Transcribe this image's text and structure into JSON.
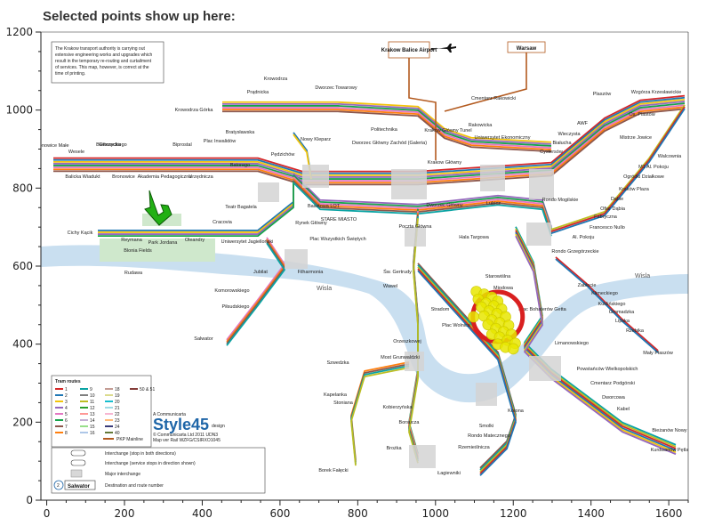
{
  "header": {
    "title": "Selected points show up here:"
  },
  "chart_data": {
    "type": "scatter",
    "xlim": [
      -15,
      1650
    ],
    "ylim": [
      0,
      1200
    ],
    "x_ticks": [
      0,
      200,
      400,
      600,
      800,
      1000,
      1200,
      1400,
      1600
    ],
    "y_ticks": [
      0,
      200,
      400,
      600,
      800,
      1000,
      1200
    ],
    "grid": false,
    "selection_marker_color": "#e8e600",
    "selection_ring_color": "#d92020",
    "points": [
      {
        "x": 1105,
        "y": 535
      },
      {
        "x": 1125,
        "y": 528
      },
      {
        "x": 1145,
        "y": 520
      },
      {
        "x": 1160,
        "y": 510
      },
      {
        "x": 1110,
        "y": 515
      },
      {
        "x": 1130,
        "y": 505
      },
      {
        "x": 1150,
        "y": 498
      },
      {
        "x": 1170,
        "y": 490
      },
      {
        "x": 1118,
        "y": 495
      },
      {
        "x": 1138,
        "y": 485
      },
      {
        "x": 1158,
        "y": 478
      },
      {
        "x": 1180,
        "y": 470
      },
      {
        "x": 1125,
        "y": 472
      },
      {
        "x": 1145,
        "y": 462
      },
      {
        "x": 1165,
        "y": 455
      },
      {
        "x": 1188,
        "y": 448
      },
      {
        "x": 1135,
        "y": 450
      },
      {
        "x": 1155,
        "y": 440
      },
      {
        "x": 1175,
        "y": 432
      },
      {
        "x": 1195,
        "y": 425
      },
      {
        "x": 1145,
        "y": 425
      },
      {
        "x": 1165,
        "y": 418
      },
      {
        "x": 1185,
        "y": 410
      },
      {
        "x": 1205,
        "y": 402
      },
      {
        "x": 1160,
        "y": 400
      },
      {
        "x": 1180,
        "y": 392
      },
      {
        "x": 1200,
        "y": 388
      },
      {
        "x": 1098,
        "y": 470
      }
    ],
    "x_name": "",
    "y_name": ""
  },
  "map": {
    "notice": [
      "The Krakow transport authority is carrying out",
      "extensive engineering works and upgrades which",
      "result in the temporary re-routing and curtailment",
      "of services. This map, however, is correct at the",
      "time of printing."
    ],
    "airport": "Krakow Balice Airport",
    "warsaw": "Warsaw",
    "river": "Wisla",
    "station_labels": [
      {
        "t": "Prądnicka",
        "x": 290,
        "y": 105
      },
      {
        "t": "Bratysławska",
        "x": 270,
        "y": 150
      },
      {
        "t": "Krowodrza Górka",
        "x": 218,
        "y": 125
      },
      {
        "t": "Dworzec Towarowy",
        "x": 378,
        "y": 100
      },
      {
        "t": "Nowy Kleparz",
        "x": 355,
        "y": 158
      },
      {
        "t": "Politechnika",
        "x": 432,
        "y": 147
      },
      {
        "t": "Pędzichów",
        "x": 318,
        "y": 175
      },
      {
        "t": "Dworzec Główny Zachód (Galeria)",
        "x": 438,
        "y": 162
      },
      {
        "t": "Krakow Główny Tunel",
        "x": 504,
        "y": 148
      },
      {
        "t": "Rakowicka",
        "x": 540,
        "y": 142
      },
      {
        "t": "Uniwersytet Ekonomiczny",
        "x": 565,
        "y": 156
      },
      {
        "t": "Cmentarz Rakowicki",
        "x": 555,
        "y": 112
      },
      {
        "t": "Krakow Główny",
        "x": 500,
        "y": 184
      },
      {
        "t": "Dworzec Główny",
        "x": 500,
        "y": 232
      },
      {
        "t": "Lubicz",
        "x": 555,
        "y": 230
      },
      {
        "t": "Bronowice Małe",
        "x": 58,
        "y": 165
      },
      {
        "t": "Wesele",
        "x": 86,
        "y": 172
      },
      {
        "t": "Głowackiego",
        "x": 127,
        "y": 164
      },
      {
        "t": "Bieńczycka",
        "x": 122,
        "y": 164
      },
      {
        "t": "Biprostal",
        "x": 205,
        "y": 164
      },
      {
        "t": "Plac Inwalidów",
        "x": 247,
        "y": 160
      },
      {
        "t": "Balicka Wiadukt",
        "x": 93,
        "y": 200
      },
      {
        "t": "Bronowice",
        "x": 139,
        "y": 200
      },
      {
        "t": "Akademia Pedagogiczna",
        "x": 185,
        "y": 200
      },
      {
        "t": "Urzędnicza",
        "x": 226,
        "y": 200
      },
      {
        "t": "Batorego",
        "x": 270,
        "y": 187
      },
      {
        "t": "Teatr Bagatela",
        "x": 271,
        "y": 234
      },
      {
        "t": "Basztowa LOT",
        "x": 364,
        "y": 233
      },
      {
        "t": "Rynek Główny",
        "x": 350,
        "y": 252
      },
      {
        "t": "STARE MIASTO",
        "x": 381,
        "y": 248
      },
      {
        "t": "Cichy Kącik",
        "x": 90,
        "y": 263
      },
      {
        "t": "Reymana",
        "x": 148,
        "y": 271
      },
      {
        "t": "Park Jordana",
        "x": 183,
        "y": 274
      },
      {
        "t": "Oleandry",
        "x": 219,
        "y": 271
      },
      {
        "t": "Cracovia",
        "x": 250,
        "y": 251
      },
      {
        "t": "Uniwersytet Jagielloński",
        "x": 278,
        "y": 273
      },
      {
        "t": "Plac Wszystkich Świętych",
        "x": 380,
        "y": 270
      },
      {
        "t": "Poczta Główna",
        "x": 467,
        "y": 256
      },
      {
        "t": "Hala Targowa",
        "x": 533,
        "y": 268
      },
      {
        "t": "Filharmonia",
        "x": 349,
        "y": 307
      },
      {
        "t": "Jubilat",
        "x": 293,
        "y": 307
      },
      {
        "t": "Komorowskiego",
        "x": 261,
        "y": 328
      },
      {
        "t": "Piłsudskiego",
        "x": 265,
        "y": 346
      },
      {
        "t": "Św. Gertrudy",
        "x": 447,
        "y": 307
      },
      {
        "t": "Wawel",
        "x": 439,
        "y": 323
      },
      {
        "t": "Starowiślna",
        "x": 560,
        "y": 312
      },
      {
        "t": "Miodowa",
        "x": 566,
        "y": 325
      },
      {
        "t": "Stradom",
        "x": 495,
        "y": 349
      },
      {
        "t": "Plac Wolnica",
        "x": 513,
        "y": 367
      },
      {
        "t": "Plac Bohaterów Getta",
        "x": 610,
        "y": 349
      },
      {
        "t": "Zabłocie",
        "x": 660,
        "y": 322
      },
      {
        "t": "Klimeckiego",
        "x": 680,
        "y": 331
      },
      {
        "t": "Kuklińskiego",
        "x": 688,
        "y": 343
      },
      {
        "t": "Gromadzka",
        "x": 699,
        "y": 352
      },
      {
        "t": "Lipska",
        "x": 700,
        "y": 362
      },
      {
        "t": "Rzebika",
        "x": 714,
        "y": 373
      },
      {
        "t": "Mały Płaszów",
        "x": 740,
        "y": 398
      },
      {
        "t": "Limanowskiego",
        "x": 643,
        "y": 387
      },
      {
        "t": "Orzeszkowej",
        "x": 458,
        "y": 385
      },
      {
        "t": "Most Grunwaldzki",
        "x": 450,
        "y": 403
      },
      {
        "t": "Salwator",
        "x": 229,
        "y": 382
      },
      {
        "t": "Szwedzka",
        "x": 380,
        "y": 409
      },
      {
        "t": "Kapelanka",
        "x": 377,
        "y": 445
      },
      {
        "t": "Stoniana",
        "x": 386,
        "y": 454
      },
      {
        "t": "Kobierzyńska",
        "x": 447,
        "y": 459
      },
      {
        "t": "Borsucza",
        "x": 460,
        "y": 476
      },
      {
        "t": "Brożka",
        "x": 443,
        "y": 505
      },
      {
        "t": "Korona",
        "x": 580,
        "y": 463
      },
      {
        "t": "Smolki",
        "x": 547,
        "y": 480
      },
      {
        "t": "Rondo Matecznego",
        "x": 550,
        "y": 491
      },
      {
        "t": "Rzemieślnicza",
        "x": 533,
        "y": 504
      },
      {
        "t": "Powstańców Wielkopolskich",
        "x": 683,
        "y": 416
      },
      {
        "t": "Cmentarz Podgórski",
        "x": 689,
        "y": 432
      },
      {
        "t": "Dworcowa",
        "x": 690,
        "y": 448
      },
      {
        "t": "Kabel",
        "x": 701,
        "y": 461
      },
      {
        "t": "Bieżanów Nowy",
        "x": 753,
        "y": 485
      },
      {
        "t": "Kurdwanów Pętla",
        "x": 753,
        "y": 507
      },
      {
        "t": "Borek Fałęcki",
        "x": 375,
        "y": 530
      },
      {
        "t": "Łagiewniki",
        "x": 505,
        "y": 533
      },
      {
        "t": "Krowodrza",
        "x": 310,
        "y": 90
      },
      {
        "t": "Mistrze Jowice",
        "x": 715,
        "y": 156
      },
      {
        "t": "Os. Piastów",
        "x": 722,
        "y": 130
      },
      {
        "t": "Wzgórza Krzesławickie",
        "x": 738,
        "y": 105
      },
      {
        "t": "Plaszów",
        "x": 677,
        "y": 107
      },
      {
        "t": "Walcownia",
        "x": 753,
        "y": 177
      },
      {
        "t": "M1 Al. Pokoju",
        "x": 735,
        "y": 189
      },
      {
        "t": "Ogródki Działkowe",
        "x": 724,
        "y": 200
      },
      {
        "t": "Kraków Plaza",
        "x": 713,
        "y": 214
      },
      {
        "t": "Dąbie",
        "x": 694,
        "y": 225
      },
      {
        "t": "Ofiar Dąbia",
        "x": 689,
        "y": 236
      },
      {
        "t": "Fabryczna",
        "x": 681,
        "y": 245
      },
      {
        "t": "Francesco Nullo",
        "x": 683,
        "y": 257
      },
      {
        "t": "Al. Pokoju",
        "x": 656,
        "y": 268
      },
      {
        "t": "Rondo Grzegórzeckie",
        "x": 647,
        "y": 284
      },
      {
        "t": "Rondo Mogilskie",
        "x": 630,
        "y": 226
      },
      {
        "t": "AWF",
        "x": 655,
        "y": 140
      },
      {
        "t": "Wieczysta",
        "x": 640,
        "y": 152
      },
      {
        "t": "Białucha",
        "x": 632,
        "y": 162
      },
      {
        "t": "Cystersów",
        "x": 620,
        "y": 172
      },
      {
        "t": "Blonia Fields",
        "x": 155,
        "y": 283
      },
      {
        "t": "Rudawa",
        "x": 150,
        "y": 308
      }
    ],
    "legend_title": "Tram routes",
    "legend_routes": [
      "1",
      "2",
      "3",
      "4",
      "5",
      "6",
      "7",
      "8",
      "9",
      "10",
      "11",
      "12",
      "13",
      "14",
      "15",
      "16",
      "18",
      "19",
      "20",
      "21",
      "22",
      "23",
      "24",
      "40",
      "50 & 51"
    ],
    "legend_pkp": "PKP Mainline",
    "key_items": [
      "Interchange (stop in both directions)",
      "Interchange (service stops in direction shown)",
      "Major interchange",
      "Destination and route number"
    ],
    "key_sample_label": "Salwator",
    "key_sample_num": "2",
    "brand_pre": "A Communicarta",
    "brand_main": "Style45",
    "brand_sub": "design",
    "copyright": [
      "© Communicarta Ltd 2011 UDN3",
      "Map ver Rail WZFG/CSIRXO1045"
    ]
  }
}
